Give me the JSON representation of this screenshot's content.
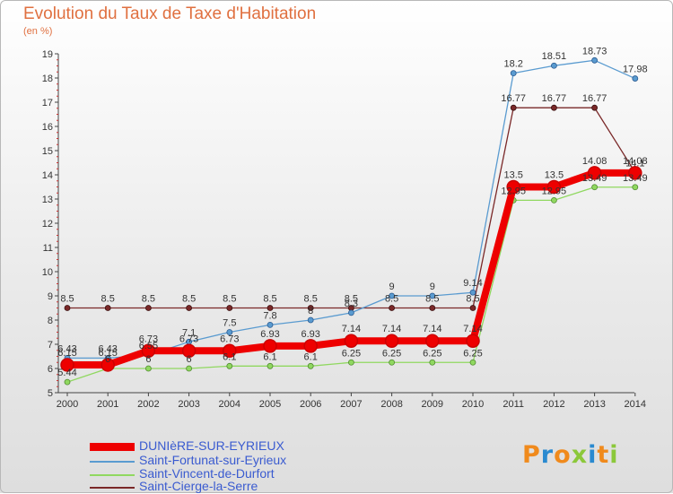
{
  "header": {
    "title": "Evolution du Taux de Taxe d'Habitation",
    "subtitle": "(en %)"
  },
  "logo": {
    "text": "Proxiti",
    "colors": [
      "#f08a1c",
      "#2a8ad0",
      "#f08a1c",
      "#8bc83a",
      "#2a8ad0",
      "#f08a1c",
      "#8bc83a"
    ]
  },
  "chart_data": {
    "type": "line",
    "x": [
      "2000",
      "2001",
      "2002",
      "2003",
      "2004",
      "2005",
      "2006",
      "2007",
      "2008",
      "2009",
      "2010",
      "2011",
      "2012",
      "2013",
      "2014"
    ],
    "ylim": [
      5,
      19
    ],
    "yticks": [
      "5",
      "6",
      "7",
      "8",
      "9",
      "10",
      "11",
      "12",
      "13",
      "14",
      "15",
      "16",
      "17",
      "18",
      "19"
    ],
    "grid": false,
    "legend_position": "bottom-left",
    "series": [
      {
        "name": "DUNIèRE-SUR-EYRIEUX",
        "color": "#ee0000",
        "values": [
          6.15,
          6.15,
          6.73,
          6.73,
          6.73,
          6.93,
          6.93,
          7.14,
          7.14,
          7.14,
          7.14,
          13.5,
          13.5,
          14.08,
          14.08
        ],
        "labels": [
          "6.15",
          "6.15",
          "6.73",
          "6.73",
          "6.73",
          "6.93",
          "6.93",
          "7.14",
          "7.14",
          "7.14",
          "7.14",
          "13.5",
          "13.5",
          "14.08",
          "14.08"
        ]
      },
      {
        "name": "Saint-Fortunat-sur-Eyrieux",
        "color": "#5a9bd0",
        "values": [
          6.43,
          6.43,
          6.55,
          7.1,
          7.5,
          7.8,
          8.0,
          8.3,
          9.0,
          9.0,
          9.14,
          18.2,
          18.51,
          18.73,
          17.98
        ],
        "labels": [
          "6.43",
          "6.43",
          "6.55",
          "7.1",
          "7.5",
          "7.8",
          "8",
          "8.3",
          "9",
          "9",
          "9.14",
          "18.2",
          "18.51",
          "18.73",
          "17.98"
        ]
      },
      {
        "name": "Saint-Vincent-de-Durfort",
        "color": "#90d860",
        "values": [
          5.44,
          6.0,
          6.0,
          6.0,
          6.1,
          6.1,
          6.1,
          6.25,
          6.25,
          6.25,
          6.25,
          12.95,
          12.95,
          13.49,
          13.49
        ],
        "labels": [
          "5.44",
          "6",
          "6",
          "6",
          "6.1",
          "6.1",
          "6.1",
          "6.25",
          "6.25",
          "6.25",
          "6.25",
          "12.95",
          "12.95",
          "13.49",
          "13.49"
        ]
      },
      {
        "name": "Saint-Cierge-la-Serre",
        "color": "#7a2828",
        "values": [
          8.5,
          8.5,
          8.5,
          8.5,
          8.5,
          8.5,
          8.5,
          8.5,
          8.5,
          8.5,
          8.5,
          16.77,
          16.77,
          16.77,
          14.1
        ],
        "labels": [
          "8.5",
          "8.5",
          "8.5",
          "8.5",
          "8.5",
          "8.5",
          "8.5",
          "8.5",
          "8.5",
          "8.5",
          "8.5",
          "16.77",
          "16.77",
          "16.77",
          "14.1"
        ]
      }
    ]
  }
}
